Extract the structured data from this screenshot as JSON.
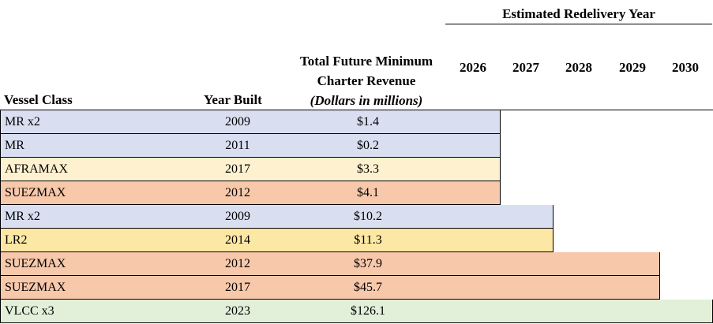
{
  "header": {
    "estimated_redelivery_year": "Estimated Redelivery Year",
    "years": [
      "2026",
      "2027",
      "2028",
      "2029",
      "2030"
    ],
    "total_line1": "Total Future Minimum",
    "total_line2": "Charter Revenue",
    "total_units": "(Dollars in millions)",
    "vessel_class": "Vessel Class",
    "year_built": "Year Built"
  },
  "colors": {
    "MR": "#d9dff1",
    "AFRAMAX": "#fef1cf",
    "SUEZMAX": "#f7c8aa",
    "LR2": "#fde7a4",
    "VLCC": "#e2efd9"
  },
  "rows": [
    {
      "vessel_class": "MR x2",
      "year_built": "2009",
      "revenue": "$1.4",
      "redelivery_year": "2026",
      "color_key": "MR"
    },
    {
      "vessel_class": "MR",
      "year_built": "2011",
      "revenue": "$0.2",
      "redelivery_year": "2026",
      "color_key": "MR"
    },
    {
      "vessel_class": "AFRAMAX",
      "year_built": "2017",
      "revenue": "$3.3",
      "redelivery_year": "2026",
      "color_key": "AFRAMAX"
    },
    {
      "vessel_class": "SUEZMAX",
      "year_built": "2012",
      "revenue": "$4.1",
      "redelivery_year": "2026",
      "color_key": "SUEZMAX"
    },
    {
      "vessel_class": "MR x2",
      "year_built": "2009",
      "revenue": "$10.2",
      "redelivery_year": "2027",
      "color_key": "MR"
    },
    {
      "vessel_class": "LR2",
      "year_built": "2014",
      "revenue": "$11.3",
      "redelivery_year": "2027",
      "color_key": "LR2"
    },
    {
      "vessel_class": "SUEZMAX",
      "year_built": "2012",
      "revenue": "$37.9",
      "redelivery_year": "2029",
      "color_key": "SUEZMAX"
    },
    {
      "vessel_class": "SUEZMAX",
      "year_built": "2017",
      "revenue": "$45.7",
      "redelivery_year": "2029",
      "color_key": "SUEZMAX"
    },
    {
      "vessel_class": "VLCC x3",
      "year_built": "2023",
      "revenue": "$126.1",
      "redelivery_year": "2030",
      "color_key": "VLCC"
    }
  ]
}
